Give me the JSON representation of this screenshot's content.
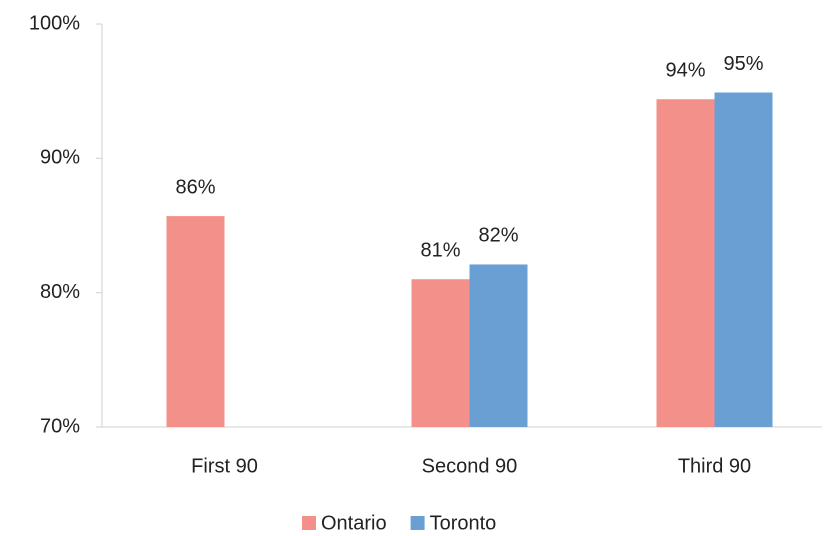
{
  "chart_data": {
    "type": "bar",
    "categories": [
      "First 90",
      "Second 90",
      "Third 90"
    ],
    "series": [
      {
        "name": "Ontario",
        "color": "#f4908a",
        "values": [
          85.7,
          81.0,
          94.4
        ],
        "value_labels": [
          "86%",
          "81%",
          "94%"
        ]
      },
      {
        "name": "Toronto",
        "color": "#6a9fd4",
        "values": [
          null,
          82.1,
          94.9
        ],
        "value_labels": [
          null,
          "82%",
          "95%"
        ]
      }
    ],
    "ylim": [
      70,
      100
    ],
    "yticks": [
      {
        "value": 70,
        "label": "70%"
      },
      {
        "value": 80,
        "label": "80%"
      },
      {
        "value": 90,
        "label": "90%"
      },
      {
        "value": 100,
        "label": "100%"
      }
    ],
    "legend": "bottom"
  }
}
